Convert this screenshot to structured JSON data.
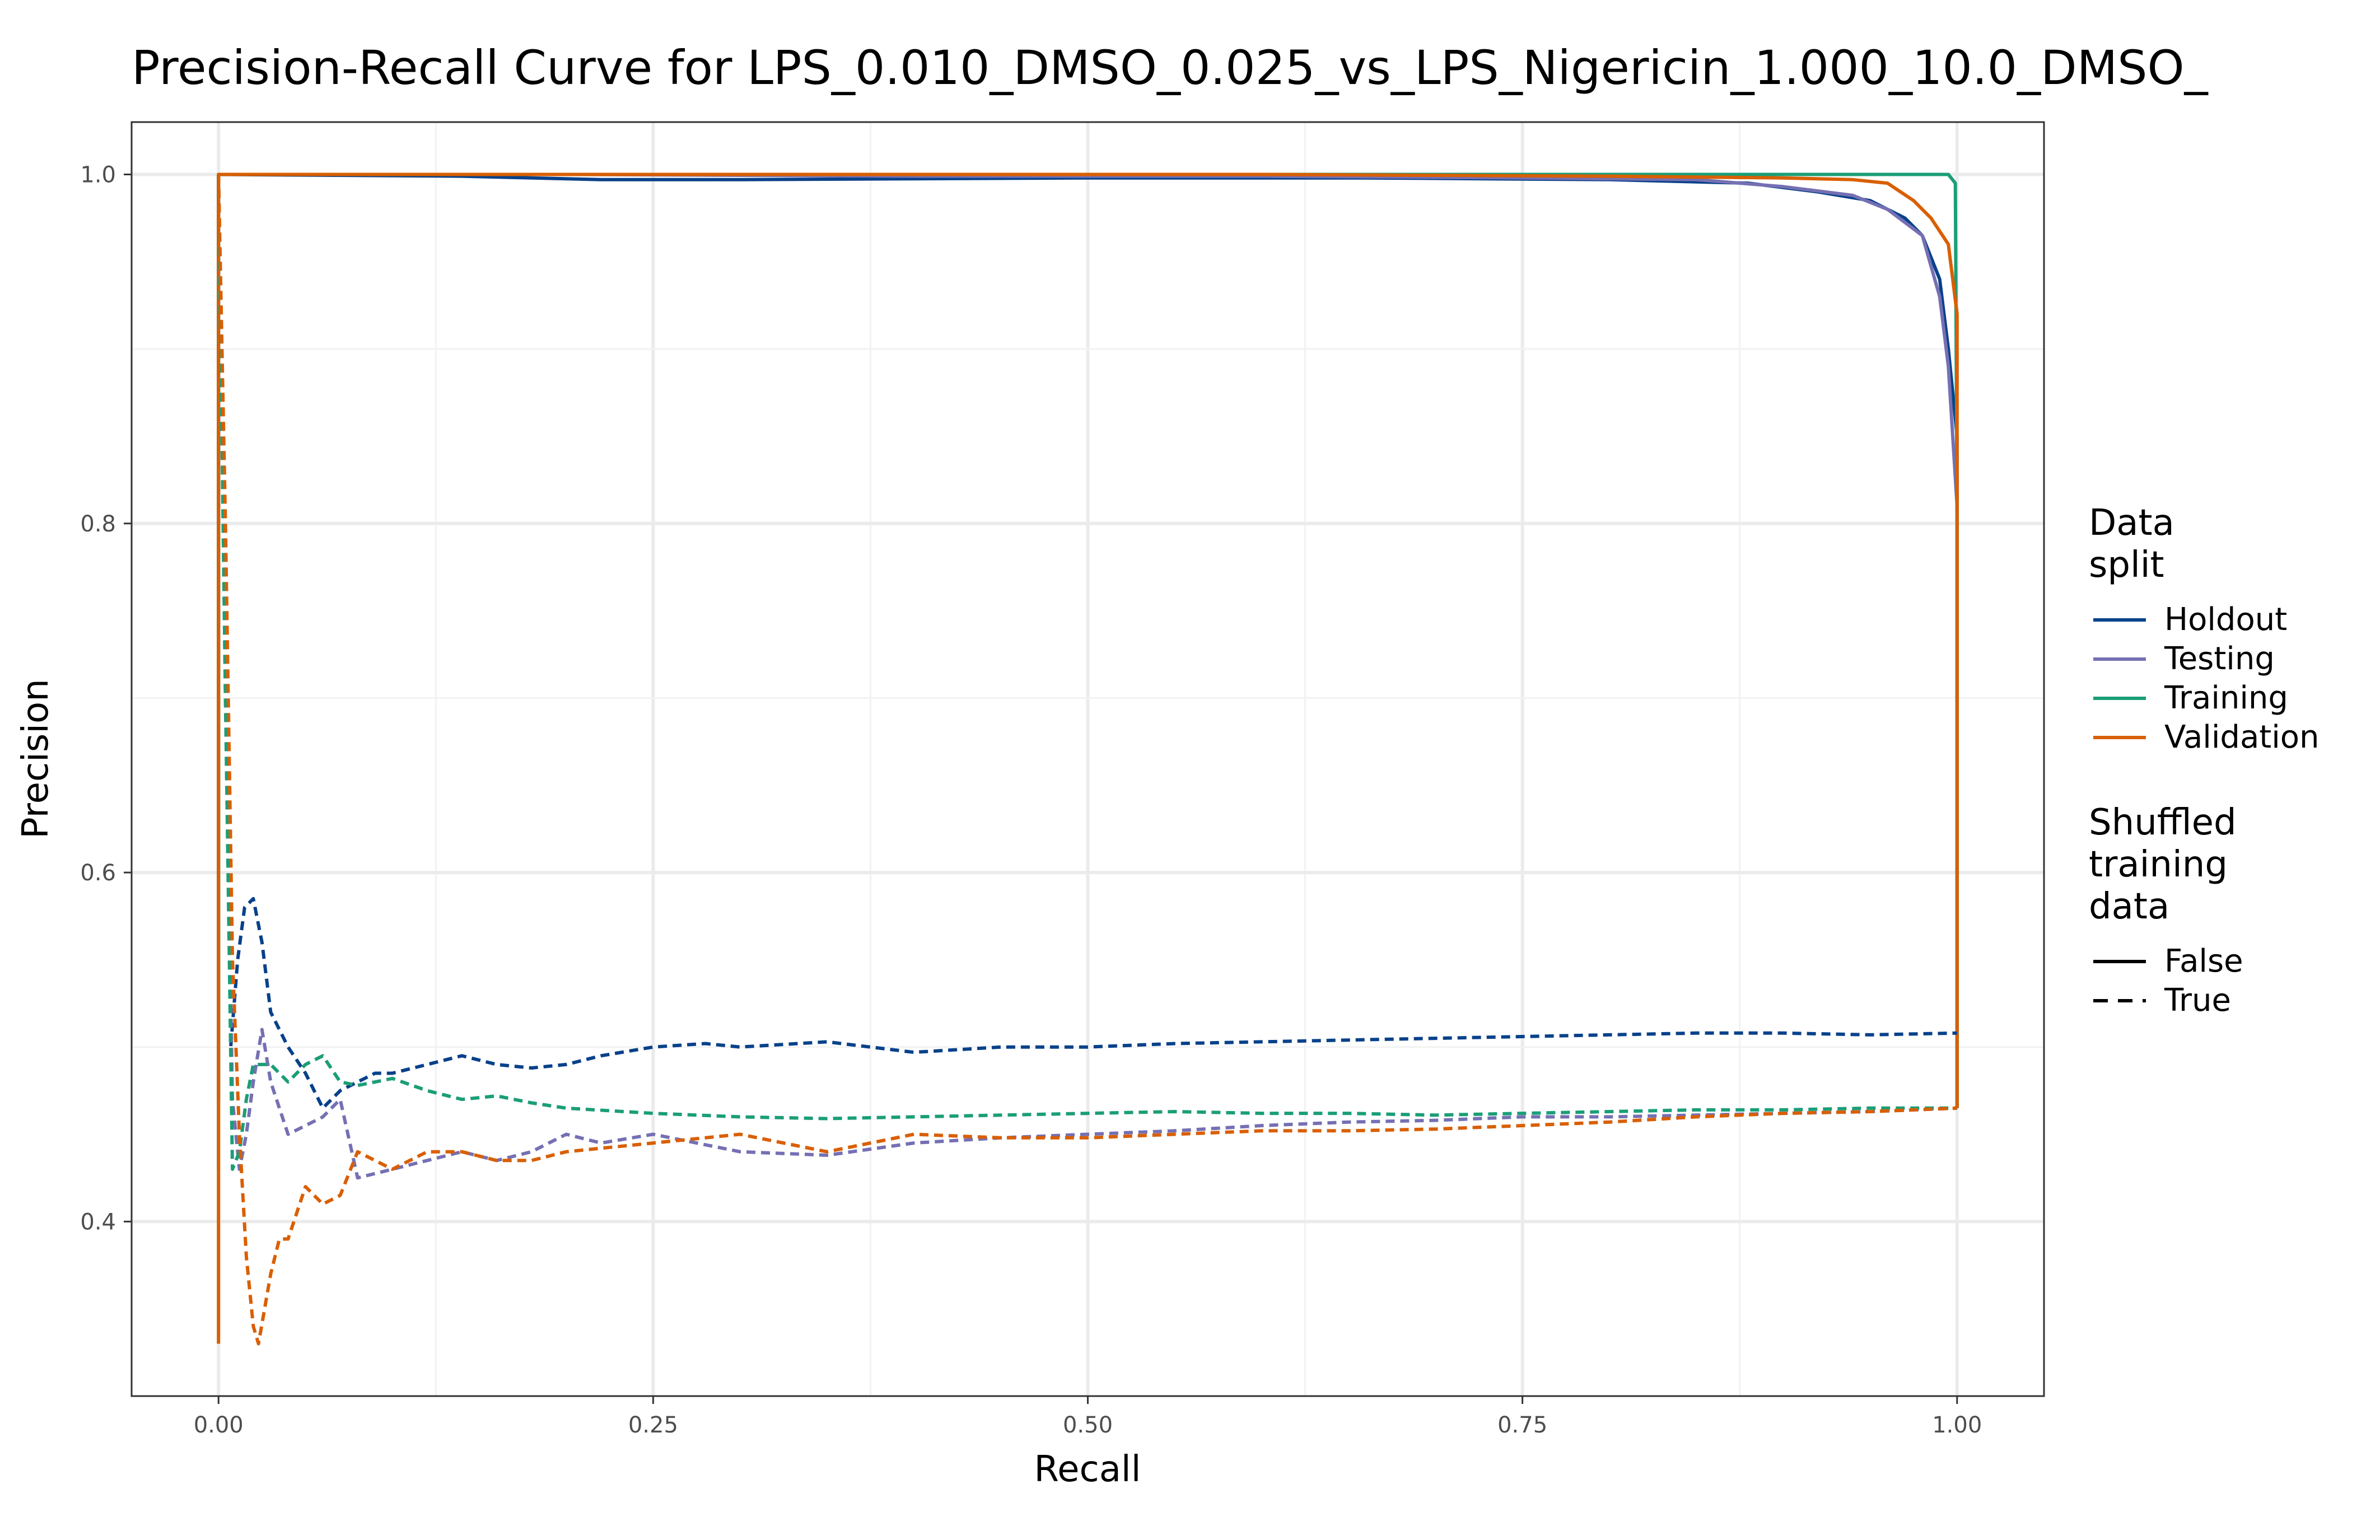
{
  "chart_data": {
    "type": "line",
    "title": "Precision-Recall Curve for LPS_0.010_DMSO_0.025_vs_LPS_Nigericin_1.000_10.0_DMSO_",
    "xlabel": "Recall",
    "ylabel": "Precision",
    "xlim": [
      -0.05,
      1.05
    ],
    "ylim": [
      0.3,
      1.03
    ],
    "x_ticks": [
      0.0,
      0.25,
      0.5,
      0.75,
      1.0
    ],
    "x_tick_labels": [
      "0.00",
      "0.25",
      "0.50",
      "0.75",
      "1.00"
    ],
    "y_ticks": [
      0.4,
      0.6,
      0.8,
      1.0
    ],
    "y_tick_labels": [
      "0.4",
      "0.6",
      "0.8",
      "1.0"
    ],
    "grid": true,
    "legend_position": "right",
    "legends": [
      {
        "title_lines": [
          "Data",
          "split"
        ],
        "entries": [
          {
            "label": "Holdout",
            "color": "#08418a"
          },
          {
            "label": "Testing",
            "color": "#7570b3"
          },
          {
            "label": "Training",
            "color": "#1b9e77"
          },
          {
            "label": "Validation",
            "color": "#d95f02"
          }
        ]
      },
      {
        "title_lines": [
          "Shuffled",
          "training",
          "data"
        ],
        "entries": [
          {
            "label": "False",
            "dash": "solid"
          },
          {
            "label": "True",
            "dash": "dashed"
          }
        ]
      }
    ],
    "series": [
      {
        "split": "Holdout",
        "shuffled": "False",
        "color": "#08418a",
        "x": [
          0.0,
          0.0,
          0.14,
          0.22,
          0.3,
          0.5,
          0.66,
          0.8,
          0.88,
          0.92,
          0.95,
          0.97,
          0.98,
          0.99,
          0.995,
          1.0,
          1.0
        ],
        "y": [
          0.47,
          1.0,
          0.999,
          0.997,
          0.997,
          0.998,
          0.998,
          0.997,
          0.995,
          0.99,
          0.985,
          0.975,
          0.965,
          0.94,
          0.9,
          0.85,
          0.465
        ]
      },
      {
        "split": "Testing",
        "shuffled": "False",
        "color": "#7570b3",
        "x": [
          0.0,
          0.0,
          0.2,
          0.4,
          0.6,
          0.75,
          0.85,
          0.9,
          0.94,
          0.96,
          0.98,
          0.99,
          0.995,
          1.0,
          1.0
        ],
        "y": [
          0.47,
          1.0,
          1.0,
          0.999,
          0.999,
          0.998,
          0.997,
          0.993,
          0.988,
          0.98,
          0.965,
          0.93,
          0.89,
          0.81,
          0.465
        ]
      },
      {
        "split": "Training",
        "shuffled": "False",
        "color": "#1b9e77",
        "x": [
          0.0,
          0.0,
          0.5,
          0.9,
          0.98,
          0.995,
          0.999,
          1.0,
          1.0
        ],
        "y": [
          0.43,
          1.0,
          1.0,
          1.0,
          1.0,
          1.0,
          0.995,
          0.8,
          0.465
        ]
      },
      {
        "split": "Validation",
        "shuffled": "False",
        "color": "#d95f02",
        "x": [
          0.0,
          0.0,
          0.3,
          0.6,
          0.8,
          0.9,
          0.94,
          0.96,
          0.975,
          0.985,
          0.995,
          1.0,
          1.0
        ],
        "y": [
          0.33,
          1.0,
          1.0,
          1.0,
          0.999,
          0.998,
          0.997,
          0.995,
          0.985,
          0.975,
          0.96,
          0.92,
          0.465
        ]
      },
      {
        "split": "Holdout",
        "shuffled": "True",
        "color": "#08418a",
        "x": [
          0.0,
          0.004,
          0.007,
          0.011,
          0.015,
          0.02,
          0.025,
          0.03,
          0.04,
          0.05,
          0.06,
          0.07,
          0.08,
          0.09,
          0.1,
          0.12,
          0.14,
          0.16,
          0.18,
          0.2,
          0.22,
          0.25,
          0.28,
          0.3,
          0.35,
          0.4,
          0.45,
          0.5,
          0.55,
          0.6,
          0.65,
          0.7,
          0.75,
          0.8,
          0.85,
          0.9,
          0.95,
          1.0
        ],
        "y": [
          1.0,
          0.75,
          0.5,
          0.55,
          0.58,
          0.585,
          0.56,
          0.52,
          0.5,
          0.485,
          0.465,
          0.475,
          0.48,
          0.485,
          0.485,
          0.49,
          0.495,
          0.49,
          0.488,
          0.49,
          0.495,
          0.5,
          0.502,
          0.5,
          0.503,
          0.497,
          0.5,
          0.5,
          0.502,
          0.503,
          0.504,
          0.505,
          0.506,
          0.507,
          0.508,
          0.508,
          0.507,
          0.508
        ]
      },
      {
        "split": "Testing",
        "shuffled": "True",
        "color": "#7570b3",
        "x": [
          0.0,
          0.004,
          0.008,
          0.012,
          0.016,
          0.02,
          0.025,
          0.03,
          0.04,
          0.05,
          0.06,
          0.07,
          0.08,
          0.1,
          0.12,
          0.14,
          0.16,
          0.18,
          0.2,
          0.22,
          0.25,
          0.3,
          0.35,
          0.4,
          0.45,
          0.5,
          0.55,
          0.6,
          0.65,
          0.7,
          0.75,
          0.8,
          0.85,
          0.9,
          0.95,
          1.0
        ],
        "y": [
          1.0,
          0.7,
          0.47,
          0.43,
          0.45,
          0.48,
          0.51,
          0.48,
          0.45,
          0.455,
          0.46,
          0.47,
          0.425,
          0.43,
          0.435,
          0.44,
          0.435,
          0.44,
          0.45,
          0.445,
          0.45,
          0.44,
          0.438,
          0.445,
          0.448,
          0.45,
          0.452,
          0.455,
          0.457,
          0.458,
          0.46,
          0.46,
          0.461,
          0.462,
          0.463,
          0.465
        ]
      },
      {
        "split": "Training",
        "shuffled": "True",
        "color": "#1b9e77",
        "x": [
          0.0,
          0.004,
          0.008,
          0.012,
          0.016,
          0.02,
          0.03,
          0.04,
          0.05,
          0.06,
          0.07,
          0.08,
          0.1,
          0.12,
          0.14,
          0.16,
          0.18,
          0.2,
          0.25,
          0.3,
          0.35,
          0.4,
          0.45,
          0.5,
          0.55,
          0.6,
          0.65,
          0.7,
          0.75,
          0.8,
          0.85,
          0.9,
          0.95,
          1.0
        ],
        "y": [
          1.0,
          0.7,
          0.43,
          0.44,
          0.47,
          0.49,
          0.49,
          0.48,
          0.49,
          0.495,
          0.48,
          0.478,
          0.482,
          0.475,
          0.47,
          0.472,
          0.468,
          0.465,
          0.462,
          0.46,
          0.459,
          0.46,
          0.461,
          0.462,
          0.463,
          0.462,
          0.462,
          0.461,
          0.462,
          0.463,
          0.464,
          0.464,
          0.465,
          0.465
        ]
      },
      {
        "split": "Validation",
        "shuffled": "True",
        "color": "#d95f02",
        "x": [
          0.0,
          0.004,
          0.008,
          0.012,
          0.016,
          0.02,
          0.023,
          0.03,
          0.035,
          0.04,
          0.05,
          0.06,
          0.07,
          0.08,
          0.1,
          0.12,
          0.14,
          0.16,
          0.18,
          0.2,
          0.25,
          0.3,
          0.35,
          0.4,
          0.45,
          0.5,
          0.55,
          0.6,
          0.65,
          0.7,
          0.75,
          0.8,
          0.85,
          0.9,
          0.95,
          1.0
        ],
        "y": [
          1.0,
          0.8,
          0.55,
          0.45,
          0.38,
          0.34,
          0.33,
          0.37,
          0.39,
          0.39,
          0.42,
          0.41,
          0.415,
          0.44,
          0.43,
          0.44,
          0.44,
          0.435,
          0.435,
          0.44,
          0.445,
          0.45,
          0.44,
          0.45,
          0.448,
          0.448,
          0.45,
          0.452,
          0.452,
          0.453,
          0.455,
          0.457,
          0.46,
          0.462,
          0.463,
          0.465
        ]
      }
    ]
  }
}
